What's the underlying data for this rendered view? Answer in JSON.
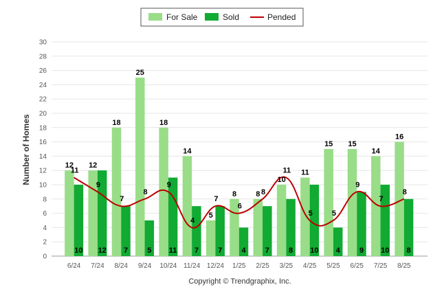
{
  "chart_data": {
    "type": "bar",
    "categories": [
      "6/24",
      "7/24",
      "8/24",
      "9/24",
      "10/24",
      "11/24",
      "12/24",
      "1/25",
      "2/25",
      "3/25",
      "4/25",
      "5/25",
      "6/25",
      "7/25",
      "8/25"
    ],
    "series": [
      {
        "name": "For Sale",
        "type": "bar",
        "color": "#99dd88",
        "values": [
          12,
          12,
          18,
          25,
          18,
          14,
          5,
          8,
          8,
          10,
          11,
          15,
          15,
          14,
          16
        ]
      },
      {
        "name": "Sold",
        "type": "bar",
        "color": "#11aa33",
        "values": [
          10,
          12,
          7,
          5,
          11,
          7,
          7,
          4,
          7,
          8,
          10,
          4,
          9,
          10,
          8
        ]
      },
      {
        "name": "Pended",
        "type": "line",
        "color": "#bb0000",
        "values": [
          11,
          9,
          7,
          8,
          9,
          4,
          7,
          6,
          8,
          11,
          5,
          5,
          9,
          7,
          8
        ]
      }
    ],
    "ylabel": "Number of Homes",
    "xlabel": "",
    "ylim": [
      0,
      30
    ],
    "yticks": [
      0,
      2,
      4,
      6,
      8,
      10,
      12,
      14,
      16,
      18,
      20,
      22,
      24,
      26,
      28,
      30
    ],
    "grid": true,
    "legend_position": "top-center"
  },
  "footer": {
    "copyright": "Copyright © Trendgraphix, Inc."
  }
}
